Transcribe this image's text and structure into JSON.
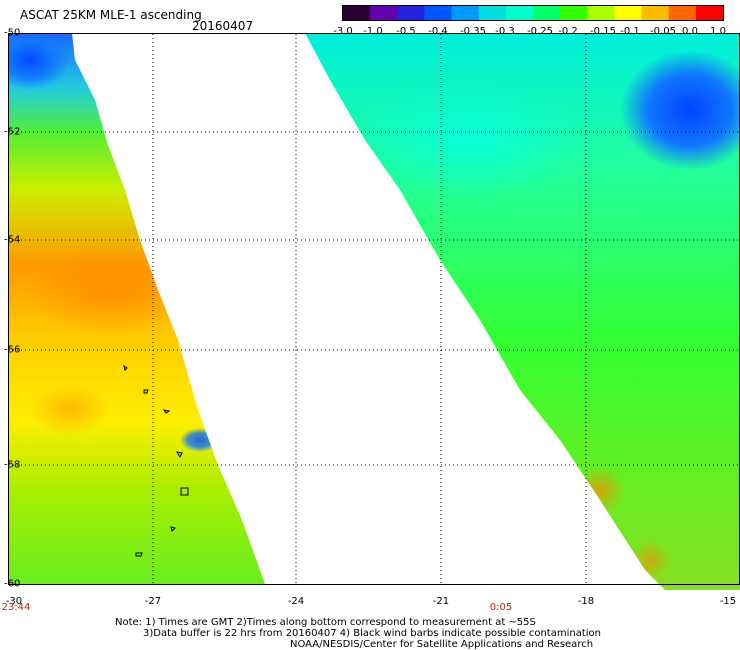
{
  "header": {
    "title": "ASCAT 25KM MLE-1 ascending",
    "date": "20160407"
  },
  "colorbar": {
    "labels": [
      "-3.0",
      "-1.0",
      "-0.5",
      "-0.4",
      "-0.35",
      "-0.3",
      "-0.25",
      "-0.2",
      "-0.15",
      "-0.1",
      "-0.05",
      "0.0",
      "1.0"
    ],
    "colors": [
      "#2a0033",
      "#6600aa",
      "#2222dd",
      "#0055ff",
      "#0099ff",
      "#00dddd",
      "#00ffcc",
      "#00ff66",
      "#33ff00",
      "#aaff00",
      "#ffff00",
      "#ffbb00",
      "#ff6600",
      "#ff0000"
    ]
  },
  "axes": {
    "y_ticks": [
      "-50",
      "-52",
      "-54",
      "-56",
      "-58",
      "-60"
    ],
    "x_ticks": [
      "-30",
      "-27",
      "-24",
      "-21",
      "-18",
      "-15"
    ]
  },
  "times": [
    "23:44",
    "0:05"
  ],
  "notes": [
    "Note: 1) Times are GMT 2)Times along bottom correspond to measurement at ~55S",
    "3)Data buffer is 22 hrs from 20160407 4) Black wind barbs indicate possible contamination",
    "NOAA/NESDIS/Center for Satellite Applications and Research"
  ]
}
